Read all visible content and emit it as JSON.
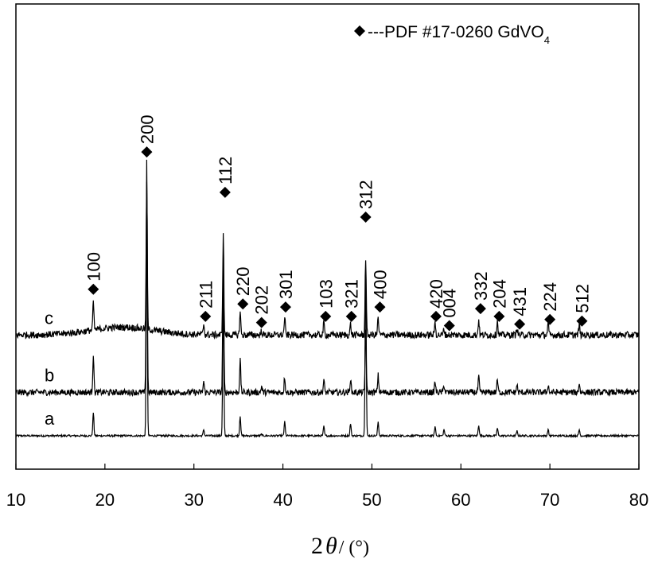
{
  "chart_data": {
    "type": "line",
    "xlabel": {
      "number": "2",
      "symbol": "θ",
      "unit": "/ (°)"
    },
    "ylabel": "",
    "xlim": [
      10,
      80
    ],
    "xticks": [
      10,
      20,
      30,
      40,
      50,
      60,
      70,
      80
    ],
    "yticks_shown": false,
    "legend": {
      "marker": "◆",
      "text": "---PDF #17-0260 GdVO",
      "subscript": "4",
      "position": "top-right"
    },
    "peak_positions": [
      18.7,
      24.7,
      31.1,
      33.3,
      35.2,
      37.6,
      40.2,
      44.6,
      47.6,
      49.3,
      50.7,
      57.1,
      58.1,
      62.0,
      64.1,
      66.3,
      69.8,
      73.3
    ],
    "series": [
      {
        "name": "a",
        "baseline": 0.0,
        "noise": 0.006,
        "intensities": [
          0.15,
          1.4,
          0.04,
          0.9,
          0.13,
          0.01,
          0.09,
          0.06,
          0.08,
          1.05,
          0.09,
          0.06,
          0.04,
          0.07,
          0.05,
          0.03,
          0.04,
          0.04
        ]
      },
      {
        "name": "b",
        "baseline": 0.28,
        "noise": 0.02,
        "intensities": [
          0.25,
          1.5,
          0.07,
          0.9,
          0.21,
          0.04,
          0.1,
          0.08,
          0.09,
          0.4,
          0.11,
          0.07,
          0.05,
          0.1,
          0.08,
          0.05,
          0.05,
          0.06
        ]
      },
      {
        "name": "c",
        "baseline": 0.65,
        "noise": 0.022,
        "hump": 0.05,
        "intensities": [
          0.18,
          0.95,
          0.07,
          0.65,
          0.15,
          0.03,
          0.11,
          0.08,
          0.07,
          0.5,
          0.11,
          0.08,
          0.04,
          0.1,
          0.09,
          0.05,
          0.07,
          0.07
        ]
      }
    ],
    "annotations": [
      {
        "hkl": "100",
        "x": 18.7,
        "marker_y": 0.945,
        "label_rot": true
      },
      {
        "hkl": "200",
        "x": 24.7,
        "marker_y": 1.83,
        "label_rot": true
      },
      {
        "hkl": "211",
        "x": 31.3,
        "marker_y": 0.77,
        "label_rot": true
      },
      {
        "hkl": "112",
        "x": 33.5,
        "marker_y": 1.57,
        "label_rot": true
      },
      {
        "hkl": "220",
        "x": 35.5,
        "marker_y": 0.85,
        "label_rot": true
      },
      {
        "hkl": "202",
        "x": 37.6,
        "marker_y": 0.73,
        "label_rot": true
      },
      {
        "hkl": "301",
        "x": 40.3,
        "marker_y": 0.83,
        "label_rot": true
      },
      {
        "hkl": "103",
        "x": 44.8,
        "marker_y": 0.77,
        "label_rot": true
      },
      {
        "hkl": "321",
        "x": 47.7,
        "marker_y": 0.77,
        "label_rot": true
      },
      {
        "hkl": "312",
        "x": 49.3,
        "marker_y": 1.41,
        "label_rot": true
      },
      {
        "hkl": "400",
        "x": 50.9,
        "marker_y": 0.83,
        "label_rot": true
      },
      {
        "hkl": "420",
        "x": 57.2,
        "marker_y": 0.77,
        "label_rot": true
      },
      {
        "hkl": "004",
        "x": 58.7,
        "marker_y": 0.71,
        "label_rot": true
      },
      {
        "hkl": "332",
        "x": 62.2,
        "marker_y": 0.82,
        "label_rot": true
      },
      {
        "hkl": "204",
        "x": 64.3,
        "marker_y": 0.77,
        "label_rot": true
      },
      {
        "hkl": "431",
        "x": 66.6,
        "marker_y": 0.72,
        "label_rot": true
      },
      {
        "hkl": "224",
        "x": 70.0,
        "marker_y": 0.75,
        "label_rot": true
      },
      {
        "hkl": "512",
        "x": 73.6,
        "marker_y": 0.74,
        "label_rot": true
      }
    ],
    "colors": {
      "line": "#000000",
      "marker": "#000000",
      "axis": "#000000"
    }
  }
}
